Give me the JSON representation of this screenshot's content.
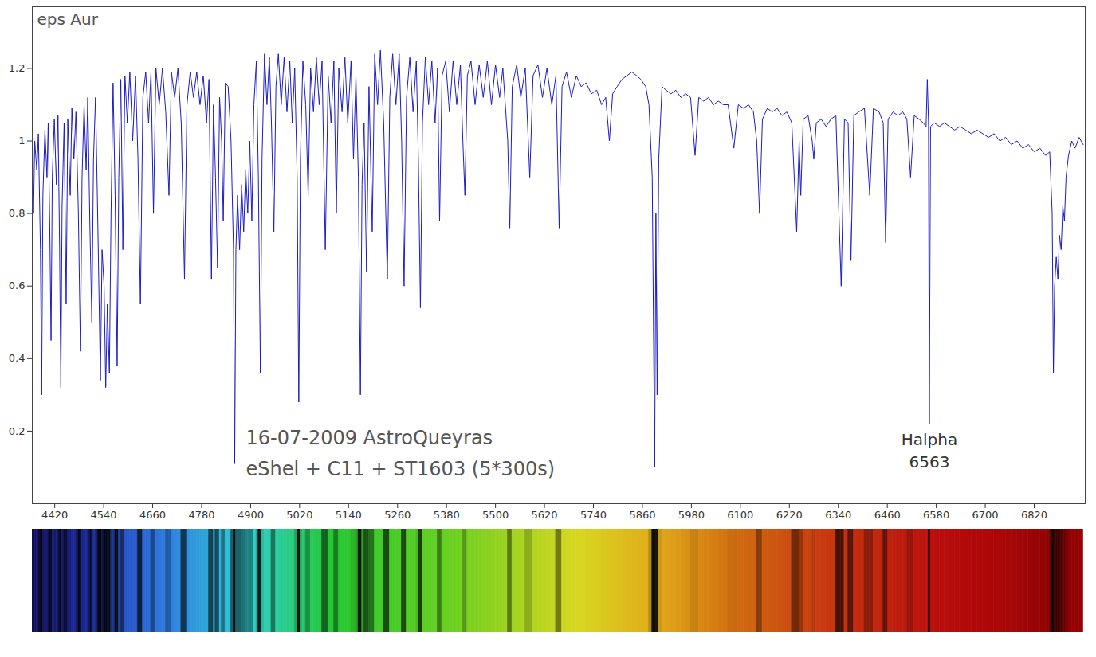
{
  "chart_data": {
    "type": "line",
    "title": "eps Aur",
    "subtitle": [
      "16-07-2009 AstroQueyras",
      "eShel + C11 + ST1603 (5*300s)"
    ],
    "annotations": [
      {
        "x": 6563,
        "y": 0.175,
        "text": "Halpha"
      },
      {
        "x": 6563,
        "y": 0.115,
        "text": "6563"
      }
    ],
    "color": "#1c1cc8",
    "grid": false,
    "xlim": [
      4365,
      6945
    ],
    "xticks": [
      4420,
      4540,
      4660,
      4780,
      4900,
      5020,
      5140,
      5260,
      5380,
      5500,
      5620,
      5740,
      5860,
      5980,
      6100,
      6220,
      6340,
      6460,
      6580,
      6700,
      6820
    ],
    "ylim": [
      0,
      1.37
    ],
    "yticks": [
      0.2,
      0.4,
      0.6,
      0.8,
      1,
      1.2
    ],
    "x": [
      4365,
      4368,
      4371,
      4376,
      4380,
      4385,
      4388,
      4391,
      4396,
      4401,
      4404,
      4408,
      4411,
      4414,
      4419,
      4424,
      4428,
      4432,
      4435,
      4438,
      4443,
      4448,
      4452,
      4458,
      4462,
      4467,
      4472,
      4478,
      4483,
      4487,
      4492,
      4497,
      4501,
      4506,
      4511,
      4515,
      4520,
      4526,
      4532,
      4536,
      4541,
      4545,
      4549,
      4554,
      4558,
      4563,
      4568,
      4573,
      4577,
      4582,
      4587,
      4592,
      4598,
      4604,
      4611,
      4618,
      4624,
      4630,
      4636,
      4643,
      4650,
      4656,
      4662,
      4668,
      4676,
      4684,
      4692,
      4700,
      4706,
      4714,
      4722,
      4730,
      4738,
      4744,
      4752,
      4760,
      4768,
      4776,
      4784,
      4792,
      4798,
      4804,
      4809,
      4814,
      4819,
      4824,
      4829,
      4833,
      4838,
      4845,
      4852,
      4858,
      4861,
      4864,
      4868,
      4873,
      4878,
      4883,
      4888,
      4893,
      4898,
      4903,
      4908,
      4914,
      4919,
      4924,
      4928,
      4934,
      4940,
      4946,
      4951,
      4957,
      4962,
      4968,
      4975,
      4982,
      4989,
      4996,
      5002,
      5008,
      5014,
      5018,
      5022,
      5028,
      5035,
      5041,
      5047,
      5054,
      5061,
      5068,
      5075,
      5083,
      5090,
      5097,
      5104,
      5110,
      5116,
      5124,
      5131,
      5138,
      5146,
      5152,
      5158,
      5164,
      5169,
      5173,
      5178,
      5184,
      5190,
      5198,
      5204,
      5211,
      5218,
      5226,
      5235,
      5241,
      5248,
      5256,
      5264,
      5270,
      5276,
      5282,
      5290,
      5298,
      5306,
      5311,
      5316,
      5321,
      5328,
      5336,
      5344,
      5352,
      5358,
      5363,
      5369,
      5378,
      5387,
      5396,
      5405,
      5414,
      5420,
      5425,
      5431,
      5440,
      5450,
      5460,
      5470,
      5480,
      5490,
      5500,
      5510,
      5518,
      5530,
      5535,
      5541,
      5552,
      5562,
      5573,
      5584,
      5592,
      5604,
      5615,
      5626,
      5638,
      5648,
      5656,
      5663,
      5674,
      5686,
      5698,
      5710,
      5722,
      5735,
      5748,
      5760,
      5770,
      5779,
      5787,
      5798,
      5810,
      5822,
      5834,
      5846,
      5856,
      5868,
      5876,
      5884,
      5890,
      5893,
      5896,
      5900,
      5908,
      5918,
      5930,
      5942,
      5954,
      5966,
      5978,
      5989,
      5998,
      6010,
      6022,
      6034,
      6046,
      6058,
      6070,
      6084,
      6095,
      6108,
      6120,
      6132,
      6140,
      6147,
      6154,
      6166,
      6178,
      6190,
      6202,
      6214,
      6226,
      6238,
      6244,
      6248,
      6254,
      6266,
      6276,
      6280,
      6286,
      6298,
      6310,
      6322,
      6334,
      6347,
      6355,
      6364,
      6371,
      6378,
      6390,
      6404,
      6417,
      6426,
      6440,
      6450,
      6456,
      6462,
      6474,
      6486,
      6498,
      6508,
      6517,
      6526,
      6538,
      6548,
      6555,
      6558,
      6561,
      6563,
      6566,
      6575,
      6588,
      6600,
      6612,
      6625,
      6638,
      6652,
      6666,
      6680,
      6694,
      6708,
      6722,
      6736,
      6750,
      6764,
      6778,
      6792,
      6806,
      6820,
      6834,
      6848,
      6858,
      6864,
      6867,
      6870,
      6874,
      6878,
      6882,
      6886,
      6890,
      6894,
      6898,
      6904,
      6912,
      6920,
      6930,
      6940
    ],
    "values": [
      0.96,
      0.8,
      1.0,
      0.92,
      1.02,
      0.7,
      0.3,
      0.85,
      1.03,
      0.9,
      1.05,
      0.75,
      0.45,
      0.9,
      1.06,
      0.88,
      1.07,
      0.7,
      0.32,
      0.82,
      1.05,
      0.55,
      1.06,
      0.85,
      1.09,
      0.95,
      1.08,
      0.8,
      0.42,
      0.9,
      1.1,
      0.92,
      1.12,
      0.78,
      0.5,
      0.95,
      1.12,
      0.75,
      0.34,
      0.7,
      0.6,
      0.32,
      0.55,
      0.36,
      0.8,
      1.16,
      0.85,
      0.38,
      0.9,
      1.17,
      0.7,
      1.18,
      1.05,
      1.19,
      1.0,
      1.18,
      0.95,
      0.55,
      1.12,
      1.19,
      1.05,
      1.19,
      0.8,
      1.2,
      1.1,
      1.2,
      1.08,
      0.85,
      1.19,
      1.12,
      1.2,
      1.05,
      0.62,
      1.1,
      1.19,
      1.12,
      1.19,
      1.1,
      1.18,
      1.05,
      1.17,
      0.62,
      1.1,
      0.9,
      0.65,
      1.12,
      1.0,
      0.78,
      1.16,
      1.15,
      1.0,
      0.7,
      0.11,
      0.7,
      0.85,
      0.7,
      0.88,
      0.75,
      0.92,
      0.8,
      1.0,
      0.78,
      1.1,
      1.22,
      0.9,
      0.36,
      0.95,
      1.24,
      1.1,
      1.23,
      1.05,
      0.75,
      1.15,
      1.24,
      1.1,
      1.23,
      1.08,
      1.22,
      1.05,
      1.2,
      0.9,
      0.28,
      0.95,
      1.22,
      1.1,
      0.85,
      1.2,
      1.08,
      1.23,
      1.1,
      1.22,
      0.7,
      1.18,
      1.05,
      1.22,
      0.8,
      1.2,
      1.08,
      1.23,
      1.05,
      1.22,
      0.95,
      1.18,
      0.9,
      0.3,
      0.88,
      1.05,
      0.64,
      1.15,
      0.75,
      1.24,
      1.1,
      1.25,
      1.05,
      0.62,
      1.12,
      1.24,
      1.1,
      1.24,
      1.0,
      0.6,
      1.12,
      1.23,
      1.08,
      1.22,
      0.95,
      0.54,
      1.05,
      1.23,
      1.1,
      1.22,
      1.05,
      1.2,
      0.78,
      1.18,
      1.22,
      1.08,
      1.22,
      1.1,
      1.21,
      1.0,
      0.85,
      1.18,
      1.22,
      1.1,
      1.21,
      1.12,
      1.22,
      1.1,
      1.21,
      1.12,
      1.2,
      1.0,
      0.76,
      1.15,
      1.21,
      1.12,
      1.2,
      0.9,
      1.18,
      1.21,
      1.12,
      1.2,
      1.1,
      1.18,
      0.76,
      1.15,
      1.19,
      1.12,
      1.18,
      1.15,
      1.16,
      1.13,
      1.14,
      1.1,
      1.12,
      1.0,
      1.13,
      1.15,
      1.17,
      1.18,
      1.19,
      1.18,
      1.17,
      1.15,
      1.1,
      0.9,
      0.1,
      0.8,
      0.3,
      0.95,
      1.15,
      1.14,
      1.13,
      1.14,
      1.12,
      1.13,
      1.12,
      0.96,
      1.12,
      1.11,
      1.12,
      1.1,
      1.11,
      1.1,
      1.1,
      0.98,
      1.1,
      1.09,
      1.1,
      1.08,
      1.0,
      0.8,
      1.06,
      1.09,
      1.08,
      1.09,
      1.07,
      1.08,
      1.05,
      0.75,
      1.0,
      0.85,
      1.06,
      1.07,
      1.0,
      0.95,
      1.05,
      1.06,
      1.04,
      1.06,
      1.07,
      0.6,
      1.06,
      1.05,
      0.67,
      1.07,
      1.08,
      1.09,
      0.85,
      1.09,
      1.08,
      1.05,
      0.72,
      1.06,
      1.08,
      1.07,
      1.08,
      1.06,
      0.9,
      1.07,
      1.06,
      1.05,
      1.04,
      1.17,
      1.05,
      0.22,
      1.04,
      1.05,
      1.04,
      1.05,
      1.04,
      1.03,
      1.04,
      1.03,
      1.02,
      1.03,
      1.02,
      1.01,
      1.02,
      1.0,
      1.01,
      0.99,
      1.0,
      0.98,
      0.99,
      0.97,
      0.98,
      0.96,
      0.97,
      0.8,
      0.36,
      0.6,
      0.68,
      0.62,
      0.74,
      0.7,
      0.82,
      0.78,
      0.9,
      0.96,
      1.0,
      0.98,
      1.01,
      0.99
    ]
  }
}
